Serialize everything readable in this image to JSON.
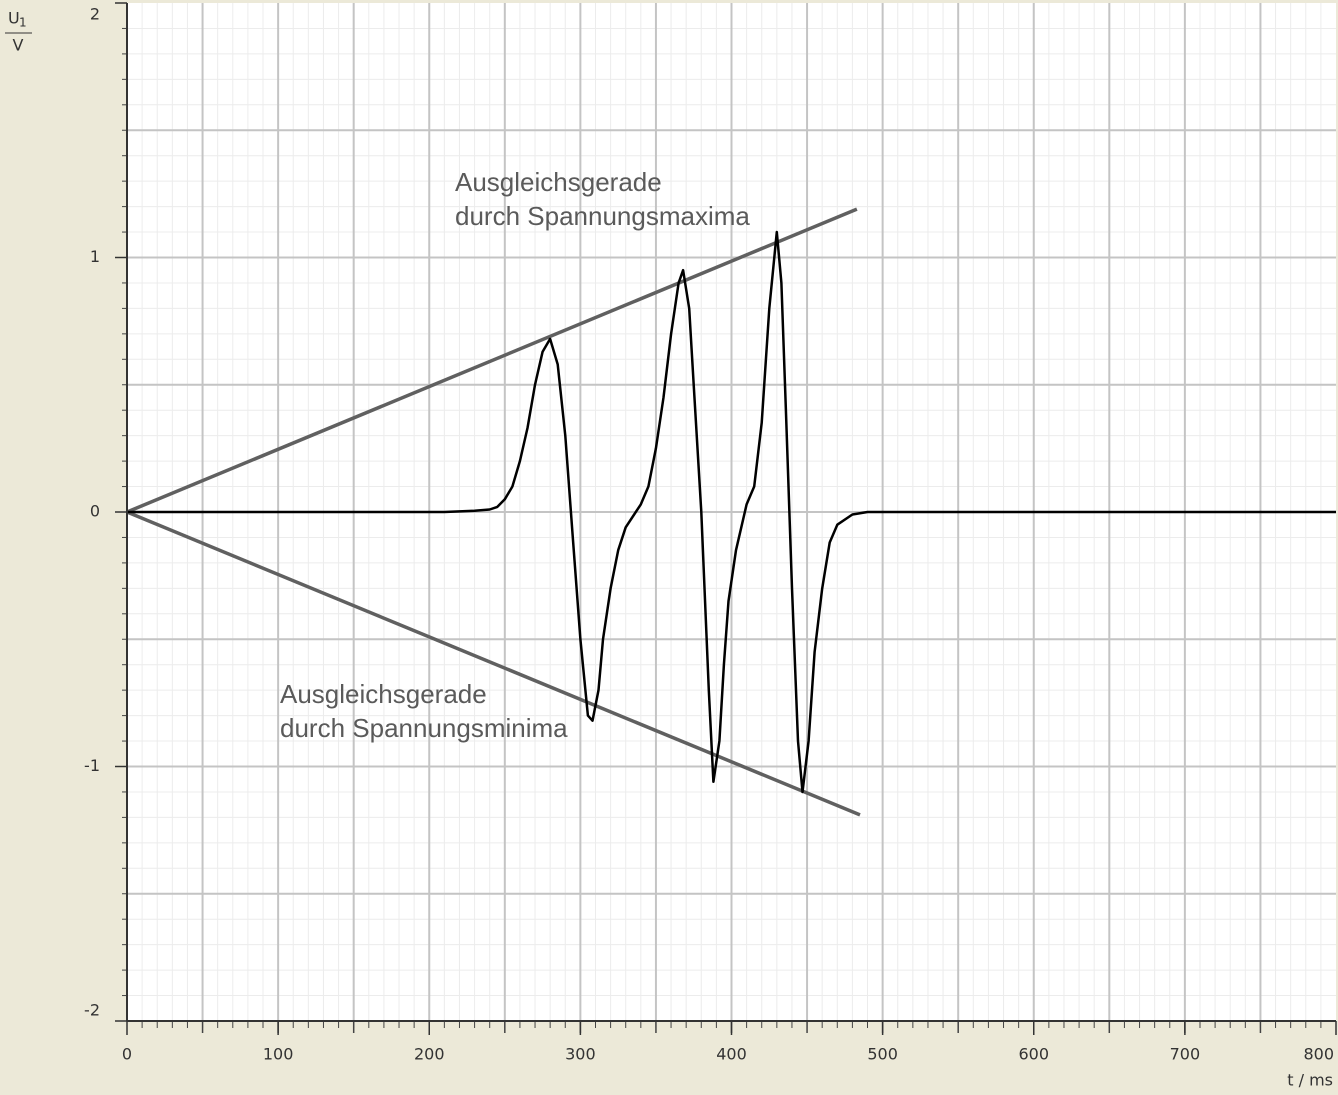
{
  "chart_data": {
    "type": "line",
    "y_label": {
      "symbol": "U",
      "index": "1",
      "unit": "V"
    },
    "x_label": "t / ms",
    "xlim": [
      0,
      800
    ],
    "ylim": [
      -2,
      2
    ],
    "xticks": [
      0,
      100,
      200,
      300,
      400,
      500,
      600,
      700,
      800
    ],
    "yticks": [
      -2,
      -1,
      0,
      1,
      2
    ],
    "xgrid": [
      50,
      100,
      150,
      200,
      250,
      300,
      350,
      400,
      450,
      500,
      550,
      600,
      650,
      700,
      750
    ],
    "ygrid": [
      -1.5,
      -1,
      -0.5,
      0,
      0.5,
      1,
      1.5
    ],
    "minor_grid": {
      "x_step": 10,
      "y_step": 0.1
    },
    "grid": true,
    "series": [
      {
        "color": "#000000",
        "x": [
          0,
          210,
          230,
          240,
          245,
          250,
          255,
          260,
          265,
          270,
          275,
          280,
          285,
          290,
          295,
          300,
          305,
          308,
          312,
          315,
          320,
          325,
          330,
          340,
          345,
          350,
          355,
          360,
          365,
          368,
          372,
          375,
          380,
          385,
          388,
          392,
          395,
          398,
          403,
          410,
          415,
          420,
          425,
          430,
          433,
          436,
          440,
          444,
          447,
          451,
          455,
          460,
          465,
          470,
          480,
          490,
          800
        ],
        "values": [
          0,
          0,
          0.005,
          0.01,
          0.02,
          0.05,
          0.1,
          0.2,
          0.33,
          0.5,
          0.63,
          0.68,
          0.58,
          0.3,
          -0.1,
          -0.5,
          -0.8,
          -0.82,
          -0.7,
          -0.5,
          -0.3,
          -0.15,
          -0.06,
          0.03,
          0.1,
          0.25,
          0.45,
          0.7,
          0.9,
          0.95,
          0.8,
          0.5,
          0,
          -0.7,
          -1.06,
          -0.9,
          -0.6,
          -0.35,
          -0.15,
          0.03,
          0.1,
          0.35,
          0.8,
          1.1,
          0.9,
          0.4,
          -0.3,
          -0.9,
          -1.1,
          -0.9,
          -0.55,
          -0.3,
          -0.12,
          -0.05,
          -0.01,
          0,
          0
        ]
      }
    ],
    "fit_lines": [
      {
        "label": [
          "Ausgleichsgerade",
          "durch Spannungsmaxima"
        ],
        "color": "#606060",
        "x": [
          0,
          483
        ],
        "values": [
          0,
          1.19
        ]
      },
      {
        "label": [
          "Ausgleichsgerade",
          "durch Spannungsminima"
        ],
        "color": "#606060",
        "x": [
          0,
          485
        ],
        "values": [
          0,
          -1.19
        ]
      }
    ]
  }
}
